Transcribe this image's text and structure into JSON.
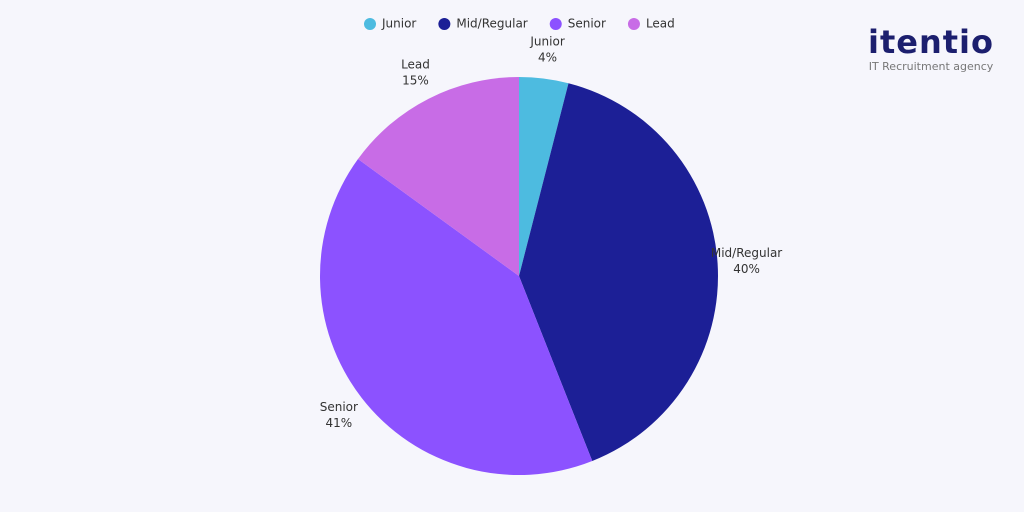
{
  "chart_data": {
    "type": "pie",
    "categories": [
      "Junior",
      "Mid/Regular",
      "Senior",
      "Lead"
    ],
    "values": [
      4,
      40,
      41,
      15
    ],
    "value_labels": [
      "4%",
      "40%",
      "41%",
      "15%"
    ],
    "colors": [
      "#4dbbe0",
      "#1c1f96",
      "#8c52ff",
      "#c86ce6"
    ],
    "legend": "top"
  },
  "logo": {
    "name": "itentio",
    "tagline": "IT Recruitment agency"
  }
}
